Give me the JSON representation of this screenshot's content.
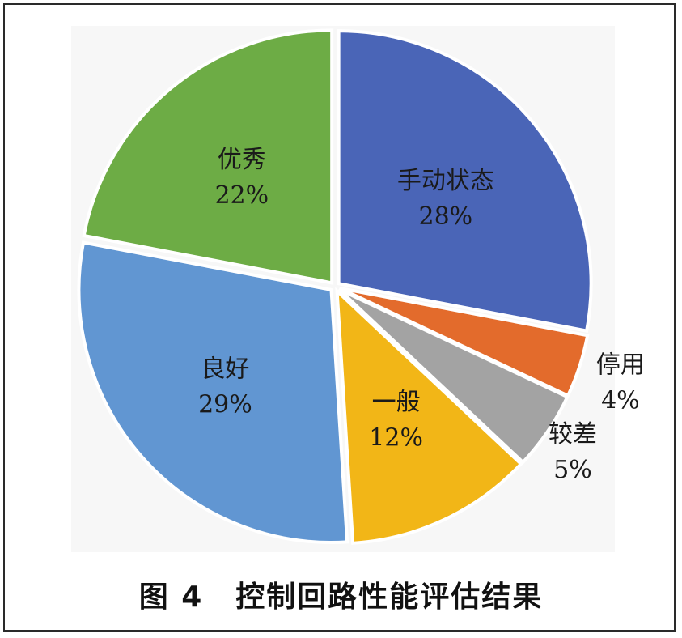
{
  "caption": {
    "figure_number": "图 4",
    "title": "控制回路性能评估结果"
  },
  "chart_data": {
    "type": "pie",
    "title": "",
    "slices": [
      {
        "label": "手动状态",
        "value": 28,
        "value_label": "28%",
        "color": "#4a65b7"
      },
      {
        "label": "停用",
        "value": 4,
        "value_label": "4%",
        "color": "#e36b2c"
      },
      {
        "label": "较差",
        "value": 5,
        "value_label": "5%",
        "color": "#a3a3a3"
      },
      {
        "label": "一般",
        "value": 12,
        "value_label": "12%",
        "color": "#f2b617"
      },
      {
        "label": "良好",
        "value": 29,
        "value_label": "29%",
        "color": "#6196d2"
      },
      {
        "label": "优秀",
        "value": 22,
        "value_label": "22%",
        "color": "#6dac45"
      }
    ],
    "start_angle_deg": 0,
    "direction": "clockwise",
    "legend": "none"
  }
}
